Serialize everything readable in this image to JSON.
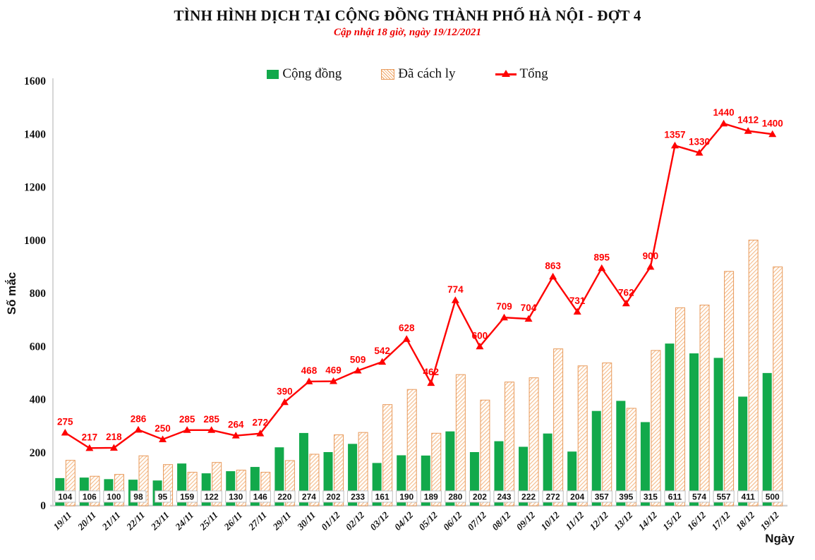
{
  "header": {
    "title": "TÌNH HÌNH DỊCH TẠI CỘNG ĐỒNG THÀNH PHỐ HÀ NỘI - ĐỢT 4",
    "subtitle": "Cập nhật 18 giờ, ngày 19/12/2021"
  },
  "legend": {
    "items": [
      {
        "label": "Cộng đồng",
        "swatch": "solid-green-square",
        "color": "#12A94B"
      },
      {
        "label": "Đã cách ly",
        "swatch": "hatched-orange-square",
        "color": "#E89A5B"
      },
      {
        "label": "Tổng",
        "swatch": "red-line-triangle-marker",
        "color": "#FE0000"
      }
    ]
  },
  "axes": {
    "y_label": "Số mắc",
    "x_label": "Ngày",
    "y_ticks": [
      0,
      200,
      400,
      600,
      800,
      1000,
      1200,
      1400,
      1600
    ],
    "y_max": 1600
  },
  "chart_data": {
    "type": "combo-bar-line",
    "title": "TÌNH HÌNH DỊCH TẠI CỘNG ĐỒNG THÀNH PHỐ HÀ NỘI - ĐỢT 4",
    "subtitle": "Cập nhật 18 giờ, ngày 19/12/2021",
    "xlabel": "Ngày",
    "ylabel": "Số mắc",
    "ylim": [
      0,
      1600
    ],
    "grid": false,
    "legend_position": "top",
    "categories": [
      "19/11",
      "20/11",
      "21/11",
      "22/11",
      "23/11",
      "24/11",
      "25/11",
      "26/11",
      "27/11",
      "29/11",
      "30/11",
      "01/12",
      "02/12",
      "03/12",
      "04/12",
      "05/12",
      "06/12",
      "07/12",
      "08/12",
      "09/12",
      "10/12",
      "11/12",
      "12/12",
      "13/12",
      "14/12",
      "15/12",
      "16/12",
      "17/12",
      "18/12",
      "19/12"
    ],
    "series": [
      {
        "name": "Cộng đồng",
        "type": "bar",
        "style": "solid",
        "color": "#12A94B",
        "labels_shown": true,
        "values": [
          104,
          106,
          100,
          98,
          95,
          159,
          122,
          130,
          146,
          220,
          274,
          202,
          233,
          161,
          190,
          189,
          280,
          202,
          243,
          222,
          272,
          204,
          357,
          395,
          315,
          611,
          574,
          557,
          411,
          500
        ]
      },
      {
        "name": "Đã cách ly",
        "type": "bar",
        "style": "hatched",
        "color": "#E89A5B",
        "labels_shown": false,
        "values": [
          171,
          111,
          118,
          188,
          155,
          126,
          163,
          134,
          126,
          170,
          194,
          267,
          276,
          381,
          438,
          273,
          494,
          398,
          466,
          482,
          591,
          527,
          538,
          367,
          585,
          746,
          756,
          883,
          1001,
          900
        ]
      },
      {
        "name": "Tổng",
        "type": "line",
        "color": "#FE0000",
        "marker": "triangle",
        "labels_shown": true,
        "values": [
          275,
          217,
          218,
          286,
          250,
          285,
          285,
          264,
          272,
          390,
          468,
          469,
          509,
          542,
          628,
          462,
          774,
          600,
          709,
          704,
          863,
          731,
          895,
          762,
          900,
          1357,
          1330,
          1440,
          1412,
          1400
        ]
      }
    ]
  }
}
